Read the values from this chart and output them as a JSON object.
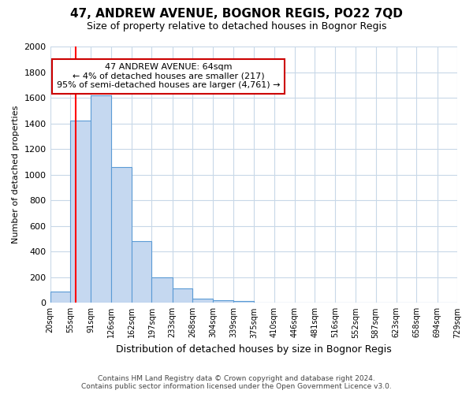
{
  "title": "47, ANDREW AVENUE, BOGNOR REGIS, PO22 7QD",
  "subtitle": "Size of property relative to detached houses in Bognor Regis",
  "xlabel": "Distribution of detached houses by size in Bognor Regis",
  "ylabel": "Number of detached properties",
  "footnote": "Contains HM Land Registry data © Crown copyright and database right 2024.\nContains public sector information licensed under the Open Government Licence v3.0.",
  "bin_labels": [
    "20sqm",
    "55sqm",
    "91sqm",
    "126sqm",
    "162sqm",
    "197sqm",
    "233sqm",
    "268sqm",
    "304sqm",
    "339sqm",
    "375sqm",
    "410sqm",
    "446sqm",
    "481sqm",
    "516sqm",
    "552sqm",
    "587sqm",
    "623sqm",
    "658sqm",
    "694sqm",
    "729sqm"
  ],
  "bin_edges": [
    20,
    55,
    91,
    126,
    162,
    197,
    233,
    268,
    304,
    339,
    375,
    410,
    446,
    481,
    516,
    552,
    587,
    623,
    658,
    694,
    729
  ],
  "bar_heights": [
    85,
    1420,
    1620,
    1060,
    480,
    200,
    110,
    35,
    20,
    15,
    0,
    0,
    0,
    0,
    0,
    0,
    0,
    0,
    0,
    0
  ],
  "bar_color": "#c5d8f0",
  "bar_edge_color": "#5b9bd5",
  "red_line_x": 64,
  "annotation_text": "47 ANDREW AVENUE: 64sqm\n← 4% of detached houses are smaller (217)\n95% of semi-detached houses are larger (4,761) →",
  "annotation_box_color": "#ffffff",
  "annotation_box_edge": "#cc0000",
  "ylim": [
    0,
    2000
  ],
  "background_color": "#ffffff",
  "grid_color": "#c8d8e8",
  "title_fontsize": 11,
  "subtitle_fontsize": 9,
  "xlabel_fontsize": 9,
  "ylabel_fontsize": 8
}
